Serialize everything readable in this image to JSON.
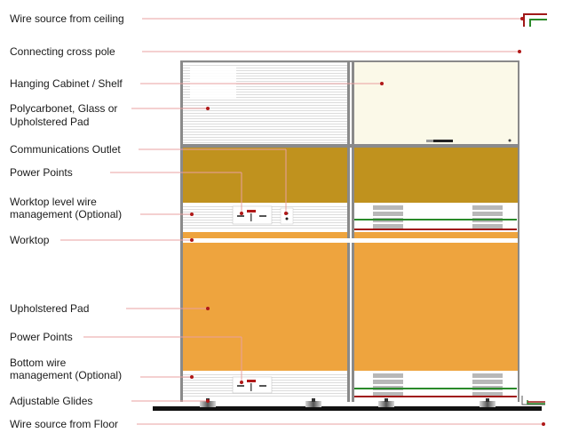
{
  "labels": {
    "wire_source_ceiling": "Wire source from ceiling",
    "cross_pole": "Connecting cross pole",
    "hanging_cabinet": "Hanging Cabinet / Shelf",
    "polycarbonet_line1": "Polycarbonet, Glass or",
    "polycarbonet_line2": "Upholstered Pad",
    "comms_outlet": "Communications Outlet",
    "power_points_top": "Power Points",
    "worktop_wire_line1": "Worktop level wire",
    "worktop_wire_line2": "management (Optional)",
    "worktop": "Worktop",
    "upholstered_pad": "Upholstered Pad",
    "power_points_bottom": "Power Points",
    "bottom_wire_line1": "Bottom wire",
    "bottom_wire_line2": "management (Optional)",
    "adjustable_glides": "Adjustable Glides",
    "wire_source_floor": "Wire source from Floor"
  },
  "colors": {
    "leader_line": "#e8a0a0",
    "leader_dot": "#b01818",
    "upper_panel": "#c0921e",
    "lower_panel": "#eea43e",
    "worktop": "#eea43e",
    "cabinet_right": "#fbf9e8",
    "frame": "#8a8a8a",
    "green_wire": "#2a8a2a",
    "red_wire": "#a01818"
  }
}
